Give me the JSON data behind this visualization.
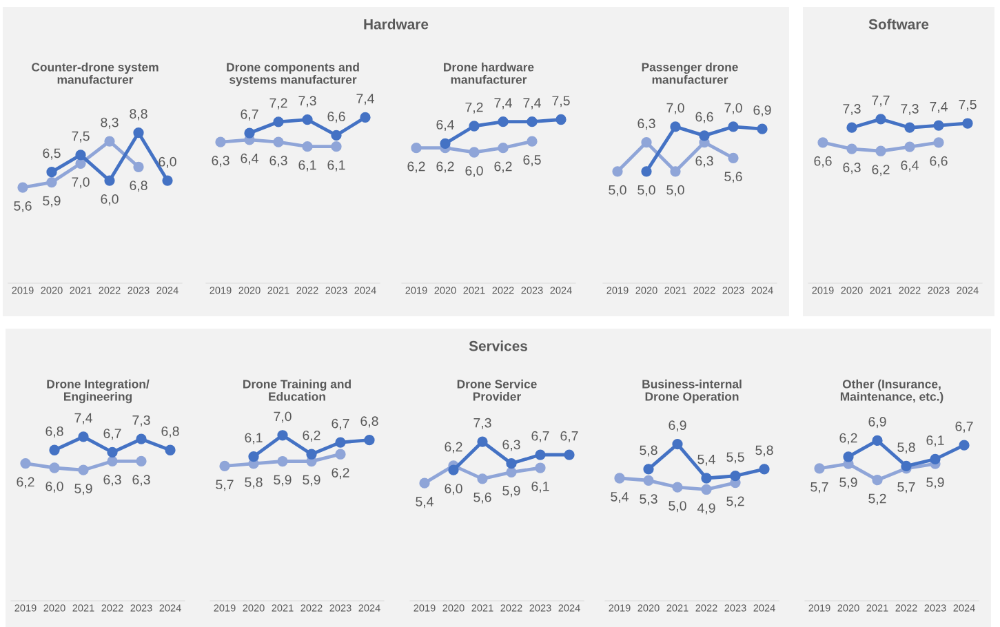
{
  "chart_data": [
    {
      "type": "line",
      "title": "Counter-drone system\nmanufacturer",
      "annotations": [
        "Hardware"
      ],
      "categories": [
        "2019",
        "2020",
        "2021",
        "2022",
        "2023",
        "2024"
      ],
      "tick_labels": "x",
      "marker": "circle",
      "series": [
        {
          "color": "#8fa5d8",
          "values": [
            5.6,
            5.9,
            7.0,
            8.3,
            6.8,
            null
          ],
          "value_labels": [
            "5,6",
            "5,9",
            "7,0",
            "8,3",
            "6,8",
            null
          ]
        },
        {
          "color": "#4472c4",
          "values": [
            null,
            6.5,
            7.5,
            6.0,
            8.8,
            6.0
          ],
          "value_labels": [
            null,
            "6,5",
            "7,5",
            "6,0",
            "8,8",
            "6,0"
          ]
        }
      ]
    },
    {
      "type": "line",
      "title": "Drone components and\nsystems manufacturer",
      "categories": [
        "2019",
        "2020",
        "2021",
        "2022",
        "2023",
        "2024"
      ],
      "tick_labels": "x",
      "marker": "circle",
      "series": [
        {
          "color": "#8fa5d8",
          "values": [
            6.3,
            6.4,
            6.3,
            6.1,
            6.1,
            null
          ],
          "value_labels": [
            "6,3",
            "6,4",
            "6,3",
            "6,1",
            "6,1",
            null
          ]
        },
        {
          "color": "#4472c4",
          "values": [
            null,
            6.7,
            7.2,
            7.3,
            6.6,
            7.4
          ],
          "value_labels": [
            null,
            "6,7",
            "7,2",
            "7,3",
            "6,6",
            "7,4"
          ]
        }
      ]
    },
    {
      "type": "line",
      "title": "Drone hardware\nmanufacturer",
      "categories": [
        "2019",
        "2020",
        "2021",
        "2022",
        "2023",
        "2024"
      ],
      "tick_labels": "x",
      "marker": "circle",
      "series": [
        {
          "color": "#8fa5d8",
          "values": [
            6.2,
            6.2,
            6.0,
            6.2,
            6.5,
            null
          ],
          "value_labels": [
            "6,2",
            "6,2",
            "6,0",
            "6,2",
            "6,5",
            null
          ]
        },
        {
          "color": "#4472c4",
          "values": [
            null,
            6.4,
            7.2,
            7.4,
            7.4,
            7.5
          ],
          "value_labels": [
            null,
            "6,4",
            "7,2",
            "7,4",
            "7,4",
            "7,5"
          ]
        }
      ]
    },
    {
      "type": "line",
      "title": "Passenger drone\nmanufacturer",
      "categories": [
        "2019",
        "2020",
        "2021",
        "2022",
        "2023",
        "2024"
      ],
      "tick_labels": "x",
      "marker": "circle",
      "series": [
        {
          "color": "#8fa5d8",
          "values": [
            5.0,
            6.3,
            5.0,
            6.3,
            5.6,
            null
          ],
          "value_labels": [
            "5,0",
            "6,3",
            "5,0",
            "6,3",
            "5,6",
            null
          ]
        },
        {
          "color": "#4472c4",
          "values": [
            null,
            5.0,
            7.0,
            6.6,
            7.0,
            6.9
          ],
          "value_labels": [
            null,
            "5,0",
            "7,0",
            "6,6",
            "7,0",
            "6,9"
          ]
        }
      ]
    },
    {
      "type": "line",
      "annotations": [
        "Software"
      ],
      "categories": [
        "2019",
        "2020",
        "2021",
        "2022",
        "2023",
        "2024"
      ],
      "tick_labels": "x",
      "marker": "circle",
      "series": [
        {
          "color": "#8fa5d8",
          "values": [
            6.6,
            6.3,
            6.2,
            6.4,
            6.6,
            null
          ],
          "value_labels": [
            "6,6",
            "6,3",
            "6,2",
            "6,4",
            "6,6",
            null
          ]
        },
        {
          "color": "#4472c4",
          "values": [
            null,
            7.3,
            7.7,
            7.3,
            7.4,
            7.5
          ],
          "value_labels": [
            null,
            "7,3",
            "7,7",
            "7,3",
            "7,4",
            "7,5"
          ]
        }
      ]
    },
    {
      "type": "line",
      "title": "Drone Integration/\nEngineering",
      "annotations": [
        "Services"
      ],
      "categories": [
        "2019",
        "2020",
        "2021",
        "2022",
        "2023",
        "2024"
      ],
      "tick_labels": "x",
      "marker": "circle",
      "series": [
        {
          "color": "#8fa5d8",
          "values": [
            6.2,
            6.0,
            5.9,
            6.3,
            6.3,
            null
          ],
          "value_labels": [
            "6,2",
            "6,0",
            "5,9",
            "6,3",
            "6,3",
            null
          ]
        },
        {
          "color": "#4472c4",
          "values": [
            null,
            6.8,
            7.4,
            6.7,
            7.3,
            6.8
          ],
          "value_labels": [
            null,
            "6,8",
            "7,4",
            "6,7",
            "7,3",
            "6,8"
          ]
        }
      ]
    },
    {
      "type": "line",
      "title": "Drone Training and\nEducation",
      "categories": [
        "2019",
        "2020",
        "2021",
        "2022",
        "2023",
        "2024"
      ],
      "tick_labels": "x",
      "marker": "circle",
      "series": [
        {
          "color": "#8fa5d8",
          "values": [
            5.7,
            5.8,
            5.9,
            5.9,
            6.2,
            null
          ],
          "value_labels": [
            "5,7",
            "5,8",
            "5,9",
            "5,9",
            "6,2",
            null
          ]
        },
        {
          "color": "#4472c4",
          "values": [
            null,
            6.1,
            7.0,
            6.2,
            6.7,
            6.8
          ],
          "value_labels": [
            null,
            "6,1",
            "7,0",
            "6,2",
            "6,7",
            "6,8"
          ]
        }
      ]
    },
    {
      "type": "line",
      "title": "Drone Service\nProvider",
      "categories": [
        "2019",
        "2020",
        "2021",
        "2022",
        "2023",
        "2024"
      ],
      "tick_labels": "x",
      "marker": "circle",
      "series": [
        {
          "color": "#8fa5d8",
          "values": [
            5.4,
            6.2,
            5.6,
            5.9,
            6.1,
            null
          ],
          "value_labels": [
            "5,4",
            "6,2",
            "5,6",
            "5,9",
            "6,1",
            null
          ]
        },
        {
          "color": "#4472c4",
          "values": [
            null,
            6.0,
            7.3,
            6.3,
            6.7,
            6.7
          ],
          "value_labels": [
            null,
            "6,0",
            "7,3",
            "6,3",
            "6,7",
            "6,7"
          ]
        }
      ]
    },
    {
      "type": "line",
      "title": "Business-internal\nDrone Operation",
      "categories": [
        "2019",
        "2020",
        "2021",
        "2022",
        "2023",
        "2024"
      ],
      "tick_labels": "x",
      "marker": "circle",
      "series": [
        {
          "color": "#8fa5d8",
          "values": [
            5.4,
            5.3,
            5.0,
            4.9,
            5.2,
            null
          ],
          "value_labels": [
            "5,4",
            "5,3",
            "5,0",
            "4,9",
            "5,2",
            null
          ]
        },
        {
          "color": "#4472c4",
          "values": [
            null,
            5.8,
            6.9,
            5.4,
            5.5,
            5.8
          ],
          "value_labels": [
            null,
            "5,8",
            "6,9",
            "5,4",
            "5,5",
            "5,8"
          ]
        }
      ]
    },
    {
      "type": "line",
      "title": "Other (Insurance,\nMaintenance, etc.)",
      "categories": [
        "2019",
        "2020",
        "2021",
        "2022",
        "2023",
        "2024"
      ],
      "tick_labels": "x",
      "marker": "circle",
      "series": [
        {
          "color": "#8fa5d8",
          "values": [
            5.7,
            5.9,
            5.2,
            5.7,
            5.9,
            null
          ],
          "value_labels": [
            "5,7",
            "5,9",
            "5,2",
            "5,7",
            "5,9",
            null
          ]
        },
        {
          "color": "#4472c4",
          "values": [
            null,
            6.2,
            6.9,
            5.8,
            6.1,
            6.7
          ],
          "value_labels": [
            null,
            "6,2",
            "6,9",
            "5,8",
            "6,1",
            "6,7"
          ]
        }
      ]
    }
  ]
}
